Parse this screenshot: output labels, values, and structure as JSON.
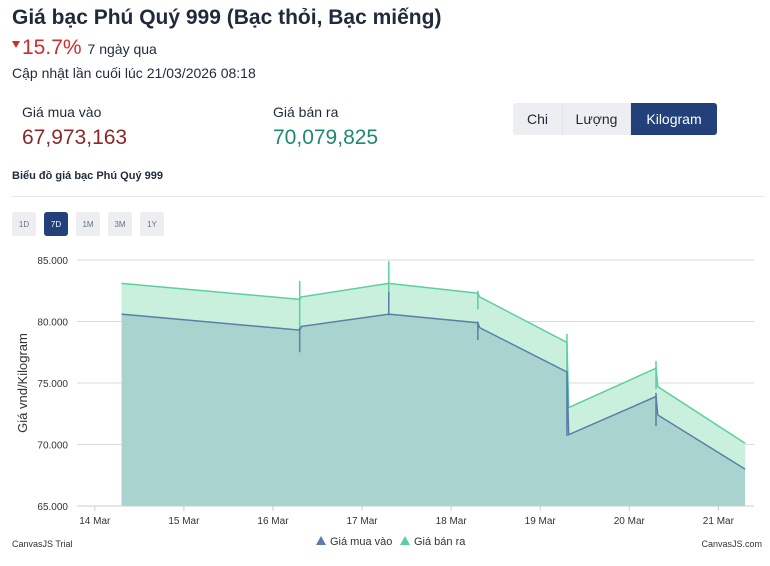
{
  "header": {
    "title": "Giá bạc Phú Quý 999 (Bạc thỏi, Bạc miếng)",
    "change_pct": "15.7%",
    "change_period": "7 ngày qua",
    "updated_label": "Cập nhật lần cuối lúc",
    "updated_time": "21/03/2026 08:18",
    "down_color": "#d42a2a"
  },
  "prices": {
    "buy_label": "Giá mua vào",
    "buy_value": "67,973,163",
    "sell_label": "Giá bán ra",
    "sell_value": "70,079,825"
  },
  "unit_tabs": {
    "items": [
      "Chi",
      "Lượng",
      "Kilogram"
    ],
    "active": "Kilogram"
  },
  "chart_section": {
    "heading": "Biểu đồ giá bạc Phú Quý 999",
    "ranges": [
      "1D",
      "7D",
      "1M",
      "3M",
      "1Y"
    ],
    "active_range": "7D",
    "trial_label": "CanvasJS Trial",
    "brand_label": "CanvasJS.com"
  },
  "chart_data": {
    "type": "area",
    "title": "",
    "xlabel": "",
    "ylabel": "Giá vnd/Kilogram",
    "x_ticks": [
      "14 Mar",
      "15 Mar",
      "16 Mar",
      "17 Mar",
      "18 Mar",
      "19 Mar",
      "20 Mar",
      "21 Mar"
    ],
    "y_ticks": [
      "65.000",
      "70.000",
      "75.000",
      "80.000",
      "85.000"
    ],
    "ylim": [
      65000,
      85000
    ],
    "x_range": [
      13.8,
      21.4
    ],
    "grid": true,
    "legend": "bottom-center",
    "series": [
      {
        "name": "Giá bán ra",
        "color": "#5ccf9f",
        "fill": "#c9f0dd",
        "points": [
          {
            "x": 14.3,
            "y": 83100
          },
          {
            "x": 16.3,
            "y": 81800
          },
          {
            "x": 16.32,
            "y": 82000
          },
          {
            "x": 17.3,
            "y": 83100
          },
          {
            "x": 18.3,
            "y": 82300
          },
          {
            "x": 18.32,
            "y": 82000
          },
          {
            "x": 19.3,
            "y": 78300
          },
          {
            "x": 19.32,
            "y": 73000
          },
          {
            "x": 20.3,
            "y": 76200
          },
          {
            "x": 20.32,
            "y": 74700
          },
          {
            "x": 21.3,
            "y": 70100
          }
        ],
        "ticks": [
          {
            "x": 16.3,
            "hi": 83300,
            "lo": 79500
          },
          {
            "x": 17.3,
            "hi": 84900,
            "lo": 81500
          },
          {
            "x": 18.3,
            "hi": 82500,
            "lo": 81000
          },
          {
            "x": 19.3,
            "hi": 79000,
            "lo": 73000
          },
          {
            "x": 20.3,
            "hi": 76800,
            "lo": 74500
          }
        ]
      },
      {
        "name": "Giá mua vào",
        "color": "#5a7ea8",
        "fill": "#a9d3cf",
        "points": [
          {
            "x": 14.3,
            "y": 80600
          },
          {
            "x": 16.3,
            "y": 79300
          },
          {
            "x": 16.32,
            "y": 79600
          },
          {
            "x": 17.3,
            "y": 80600
          },
          {
            "x": 18.3,
            "y": 79900
          },
          {
            "x": 18.32,
            "y": 79500
          },
          {
            "x": 19.3,
            "y": 75900
          },
          {
            "x": 19.32,
            "y": 70800
          },
          {
            "x": 20.3,
            "y": 73900
          },
          {
            "x": 20.32,
            "y": 72400
          },
          {
            "x": 21.3,
            "y": 68000
          }
        ],
        "ticks": [
          {
            "x": 16.3,
            "hi": 79500,
            "lo": 77500
          },
          {
            "x": 17.3,
            "hi": 82400,
            "lo": 80500
          },
          {
            "x": 18.3,
            "hi": 80000,
            "lo": 78500
          },
          {
            "x": 19.3,
            "hi": 75900,
            "lo": 70700
          },
          {
            "x": 20.3,
            "hi": 74200,
            "lo": 71500
          }
        ]
      }
    ],
    "legend_order": [
      "Giá mua vào",
      "Giá bán ra"
    ]
  }
}
